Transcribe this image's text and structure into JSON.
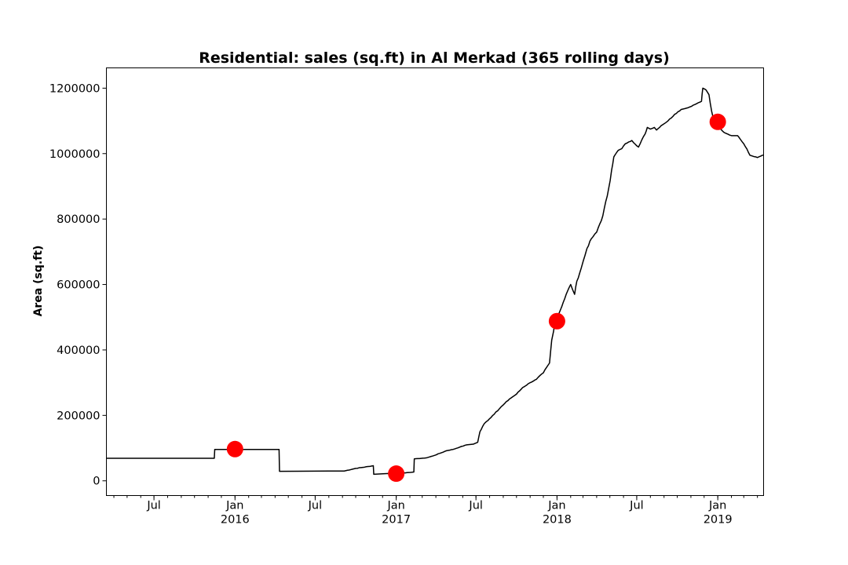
{
  "chart_data": {
    "type": "line",
    "title": "Residential: sales (sq.ft) in Al Merkad (365 rolling days)",
    "xlabel": "",
    "ylabel": "Area (sq.ft)",
    "xlim": [
      "2015-03-15",
      "2019-04-15"
    ],
    "ylim": [
      -45000,
      1262000
    ],
    "grid": false,
    "y_ticks": [
      0,
      200000,
      400000,
      600000,
      800000,
      1000000,
      1200000
    ],
    "x_ticks": [
      {
        "date": "2015-07-01",
        "label": "Jul",
        "sublabel": ""
      },
      {
        "date": "2016-01-01",
        "label": "Jan",
        "sublabel": "2016"
      },
      {
        "date": "2016-07-01",
        "label": "Jul",
        "sublabel": ""
      },
      {
        "date": "2017-01-01",
        "label": "Jan",
        "sublabel": "2017"
      },
      {
        "date": "2017-07-01",
        "label": "Jul",
        "sublabel": ""
      },
      {
        "date": "2018-01-01",
        "label": "Jan",
        "sublabel": "2018"
      },
      {
        "date": "2018-07-01",
        "label": "Jul",
        "sublabel": ""
      },
      {
        "date": "2019-01-01",
        "label": "Jan",
        "sublabel": "2019"
      }
    ],
    "series": [
      {
        "style": "step",
        "color": "#000000",
        "x": [
          "2015-03-15",
          "2015-11-15",
          "2015-11-16",
          "2016-04-10",
          "2016-04-11",
          "2016-08-01",
          "2016-08-10",
          "2016-09-05",
          "2016-10-01",
          "2016-11-10",
          "2016-11-11",
          "2016-12-10",
          "2017-01-10",
          "2017-02-10",
          "2017-02-11",
          "2017-03-10",
          "2017-03-25",
          "2017-04-10",
          "2017-04-25",
          "2017-05-10",
          "2017-05-25",
          "2017-06-10",
          "2017-06-25",
          "2017-07-05",
          "2017-07-10",
          "2017-07-20",
          "2017-08-01",
          "2017-08-15",
          "2017-09-01",
          "2017-09-15",
          "2017-10-01",
          "2017-10-15",
          "2017-11-01",
          "2017-11-15",
          "2017-12-01",
          "2017-12-15",
          "2017-12-20",
          "2017-12-28",
          "2018-01-05",
          "2018-01-15",
          "2018-01-25",
          "2018-02-01",
          "2018-02-10",
          "2018-02-15",
          "2018-02-25",
          "2018-03-10",
          "2018-03-20",
          "2018-04-01",
          "2018-04-15",
          "2018-04-25",
          "2018-05-05",
          "2018-05-10",
          "2018-05-20",
          "2018-05-28",
          "2018-06-05",
          "2018-06-20",
          "2018-07-05",
          "2018-07-20",
          "2018-07-25",
          "2018-08-01",
          "2018-08-10",
          "2018-08-15",
          "2018-08-25",
          "2018-09-10",
          "2018-09-25",
          "2018-10-10",
          "2018-10-25",
          "2018-11-10",
          "2018-11-25",
          "2018-11-28",
          "2018-12-05",
          "2018-12-12",
          "2018-12-18",
          "2018-12-25",
          "2019-01-05",
          "2019-01-15",
          "2019-02-01",
          "2019-02-15",
          "2019-03-01",
          "2019-03-15",
          "2019-04-01",
          "2019-04-15"
        ],
        "y": [
          69000,
          69000,
          96000,
          96000,
          29000,
          30000,
          30000,
          30000,
          38000,
          46000,
          20000,
          22000,
          23000,
          27000,
          67000,
          70000,
          76000,
          84000,
          92000,
          96000,
          103000,
          110000,
          112000,
          118000,
          150000,
          175000,
          190000,
          210000,
          232000,
          250000,
          265000,
          285000,
          300000,
          310000,
          330000,
          360000,
          430000,
          490000,
          510000,
          545000,
          580000,
          600000,
          570000,
          610000,
          650000,
          710000,
          740000,
          760000,
          810000,
          870000,
          950000,
          990000,
          1010000,
          1015000,
          1030000,
          1040000,
          1020000,
          1060000,
          1080000,
          1075000,
          1080000,
          1072000,
          1085000,
          1100000,
          1120000,
          1135000,
          1140000,
          1150000,
          1160000,
          1200000,
          1195000,
          1180000,
          1130000,
          1090000,
          1080000,
          1065000,
          1055000,
          1055000,
          1030000,
          995000,
          988000,
          996000
        ]
      },
      {
        "style": "markers",
        "color": "#ff0000",
        "x": [
          "2016-01-01",
          "2017-01-01",
          "2018-01-01",
          "2019-01-01"
        ],
        "y": [
          97000,
          22000,
          488000,
          1097000
        ]
      }
    ]
  }
}
